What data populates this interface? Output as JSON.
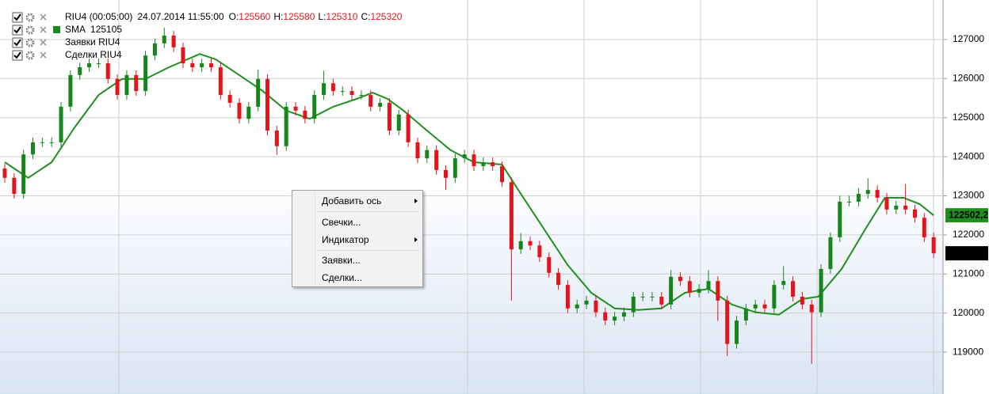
{
  "legend": {
    "instrument": "RIU4 (00:05:00)",
    "datetime": "24.07.2014 11:55:00",
    "ohlc": [
      {
        "key": "O:",
        "value": 125560
      },
      {
        "key": "H:",
        "value": 125580
      },
      {
        "key": "L:",
        "value": 125310
      },
      {
        "key": "C:",
        "value": 125320
      }
    ],
    "sma_name": "SMA",
    "sma_value": 125105,
    "orders": "Заявки RIU4",
    "trades": "Сделки RIU4"
  },
  "menu": {
    "items": [
      {
        "label": "Добавить ось",
        "submenu": true
      },
      {
        "label": "Свечки...",
        "submenu": false
      },
      {
        "label": "Индикатор",
        "submenu": true
      },
      {
        "label": "Заявки...",
        "submenu": false
      },
      {
        "label": "Сделки...",
        "submenu": false
      }
    ]
  },
  "chart_data": {
    "type": "candlestick",
    "up_color": "#17861a",
    "down_color": "#e3151b",
    "ylim": [
      117930,
      128010
    ],
    "yticks": [
      119000,
      120000,
      121000,
      122000,
      123000,
      124000,
      125000,
      126000,
      127000
    ],
    "grid": true,
    "open": [
      123700,
      123460,
      123050,
      124060,
      124370,
      124370,
      124370,
      125280,
      126090,
      126290,
      126390,
      126390,
      125990,
      125580,
      126090,
      125680,
      126590,
      126900,
      127100,
      126800,
      126390,
      126290,
      126390,
      126290,
      125580,
      125380,
      124970,
      125280,
      125990,
      124670,
      124270,
      125280,
      125180,
      124970,
      125580,
      125880,
      125680,
      125680,
      125580,
      125580,
      125280,
      125380,
      124670,
      125080,
      124370,
      123960,
      124170,
      123660,
      123460,
      123960,
      124060,
      123760,
      123860,
      123760,
      123350,
      121630,
      121840,
      121730,
      121430,
      121030,
      120720,
      120120,
      120220,
      120320,
      120020,
      119810,
      119910,
      120020,
      120420,
      120420,
      120420,
      120220,
      120930,
      120820,
      120520,
      120620,
      120820,
      120320,
      119210,
      119810,
      120120,
      120220,
      120120,
      120720,
      120820,
      120420,
      120220,
      120020,
      121130,
      121940,
      122850,
      122850,
      123050,
      123150,
      122950,
      122650,
      122750,
      122650,
      122440,
      121940
    ],
    "high": [
      123820,
      123580,
      124180,
      124490,
      124490,
      124490,
      125400,
      126210,
      126410,
      126510,
      126510,
      126510,
      126110,
      126210,
      126210,
      126710,
      127020,
      127300,
      127220,
      126920,
      126510,
      126510,
      126510,
      126410,
      125700,
      125500,
      125400,
      126230,
      126110,
      124790,
      125400,
      125400,
      125300,
      125700,
      126200,
      126000,
      125800,
      125800,
      125700,
      125700,
      125500,
      125500,
      125200,
      125200,
      124490,
      124290,
      124290,
      123780,
      124080,
      124180,
      124180,
      123980,
      123980,
      123880,
      123470,
      122050,
      121960,
      121850,
      121550,
      121150,
      120840,
      120340,
      120440,
      120440,
      120140,
      120030,
      120140,
      120540,
      120540,
      120540,
      120540,
      121100,
      121050,
      120940,
      120740,
      121100,
      120940,
      120440,
      119930,
      120240,
      120340,
      120340,
      120840,
      121200,
      120940,
      120540,
      120340,
      121250,
      122060,
      123000,
      123000,
      123200,
      123450,
      123270,
      123070,
      122870,
      123300,
      122770,
      122560,
      122060
    ],
    "low": [
      123340,
      122930,
      122930,
      123940,
      124250,
      124250,
      124250,
      125160,
      125970,
      126170,
      126270,
      125870,
      125460,
      125460,
      125560,
      125560,
      126470,
      126780,
      126680,
      126270,
      126170,
      126170,
      126170,
      125460,
      125260,
      124850,
      124850,
      125160,
      124550,
      124050,
      124150,
      125060,
      124850,
      124850,
      125460,
      125560,
      125560,
      125460,
      125460,
      125160,
      125160,
      124550,
      124550,
      124250,
      123840,
      123840,
      123540,
      123150,
      123340,
      123840,
      123640,
      123640,
      123640,
      123230,
      120320,
      121510,
      121610,
      121310,
      120910,
      120600,
      120000,
      120000,
      120100,
      119900,
      119690,
      119690,
      119790,
      119900,
      120300,
      120300,
      120100,
      120100,
      120700,
      120400,
      120400,
      120500,
      119800,
      118900,
      119090,
      119690,
      120000,
      120000,
      120000,
      120600,
      120300,
      120100,
      118700,
      119900,
      121010,
      121820,
      122730,
      122730,
      122930,
      122830,
      122530,
      122530,
      122530,
      122320,
      121820,
      121410
    ],
    "close": [
      123460,
      123050,
      124060,
      124370,
      124370,
      124370,
      125280,
      126090,
      126290,
      126390,
      126390,
      125990,
      125580,
      126090,
      125680,
      126590,
      126900,
      127100,
      126800,
      126390,
      126290,
      126390,
      126290,
      125580,
      125380,
      124970,
      125280,
      125990,
      124670,
      124270,
      125280,
      125180,
      124970,
      125580,
      125880,
      125680,
      125680,
      125580,
      125580,
      125280,
      125380,
      124670,
      125080,
      124370,
      123960,
      124170,
      123660,
      123460,
      123960,
      124060,
      123760,
      123860,
      123760,
      123350,
      121630,
      121840,
      121730,
      121430,
      121030,
      120720,
      120120,
      120220,
      120320,
      120020,
      119810,
      119910,
      120020,
      120420,
      120420,
      120420,
      120220,
      120930,
      120820,
      120520,
      120620,
      120820,
      120320,
      119210,
      119810,
      120120,
      120220,
      120120,
      120720,
      120820,
      120420,
      120220,
      120020,
      121130,
      121940,
      122850,
      122850,
      123050,
      123150,
      122950,
      122650,
      122750,
      122650,
      122440,
      121940,
      121530
    ],
    "last_price": 121530,
    "sma": {
      "color": "#1f8f1f",
      "last_label": {
        "value": 122502.2,
        "label": "122502,2"
      },
      "x": [
        0,
        2.5,
        5,
        7.5,
        10,
        12.5,
        15,
        17.5,
        20.8,
        22.5,
        25,
        27.5,
        30,
        32.5,
        35,
        37.5,
        39.2,
        40.8,
        42.5,
        45,
        47.5,
        50,
        53,
        55,
        57.5,
        60,
        62.5,
        65,
        67.5,
        70,
        72.5,
        75,
        77.5,
        80,
        82.5,
        85,
        86.7,
        89.2,
        91.7,
        93.8,
        95.8,
        97.5,
        99
      ],
      "values": [
        123860,
        123460,
        123860,
        124770,
        125580,
        125990,
        125990,
        126290,
        126630,
        126490,
        126090,
        125680,
        125180,
        124970,
        125280,
        125480,
        125640,
        125480,
        125180,
        124670,
        124170,
        123860,
        123800,
        123050,
        122140,
        121230,
        120520,
        120120,
        120080,
        120120,
        120520,
        120620,
        120220,
        120020,
        119960,
        120360,
        120420,
        121130,
        122140,
        122950,
        122950,
        122790,
        122500
      ]
    }
  }
}
